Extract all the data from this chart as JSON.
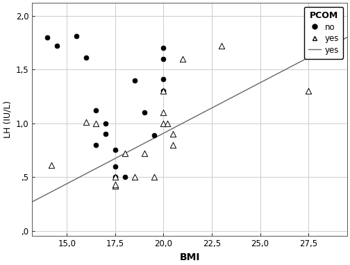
{
  "no_bmi": [
    14.0,
    14.5,
    15.5,
    16.0,
    16.5,
    16.5,
    17.0,
    17.0,
    17.5,
    17.5,
    17.5,
    18.0,
    18.5,
    19.0,
    19.5,
    20.0,
    20.0,
    20.0,
    20.0
  ],
  "no_lh": [
    1.8,
    1.72,
    1.81,
    1.61,
    1.12,
    0.8,
    1.0,
    0.9,
    0.75,
    0.6,
    0.5,
    0.5,
    1.4,
    1.1,
    0.89,
    1.41,
    1.3,
    1.6,
    1.7
  ],
  "yes_bmi": [
    14.2,
    16.0,
    16.5,
    17.5,
    17.5,
    17.5,
    18.0,
    18.5,
    19.0,
    19.5,
    20.0,
    20.0,
    20.0,
    20.2,
    20.5,
    20.5,
    21.0,
    23.0,
    27.5
  ],
  "yes_lh": [
    0.61,
    1.01,
    1.0,
    0.42,
    0.43,
    0.5,
    0.72,
    0.5,
    0.72,
    0.5,
    1.0,
    1.3,
    1.1,
    1.0,
    0.9,
    0.8,
    1.6,
    1.72,
    1.3
  ],
  "line_x": [
    13.0,
    29.5
  ],
  "line_y": [
    0.25,
    1.8
  ],
  "xlabel": "BMI",
  "ylabel": "LH (IU/L)",
  "xlim": [
    13.2,
    29.5
  ],
  "ylim": [
    -0.05,
    2.12
  ],
  "xticks": [
    15.0,
    17.5,
    20.0,
    22.5,
    25.0,
    27.5
  ],
  "yticks": [
    0.0,
    0.5,
    1.0,
    1.5,
    2.0
  ],
  "xtick_labels": [
    "15,0",
    "17,5",
    "20,0",
    "22,5",
    "25,0",
    "27,5"
  ],
  "ytick_labels": [
    ",0",
    ",5",
    "1,0",
    "1,5",
    "2,0"
  ],
  "legend_title": "PCOM",
  "line_color": "#666666",
  "grid_color": "#cccccc",
  "bg_color": "white",
  "markersize_no": 5,
  "markersize_yes": 6
}
